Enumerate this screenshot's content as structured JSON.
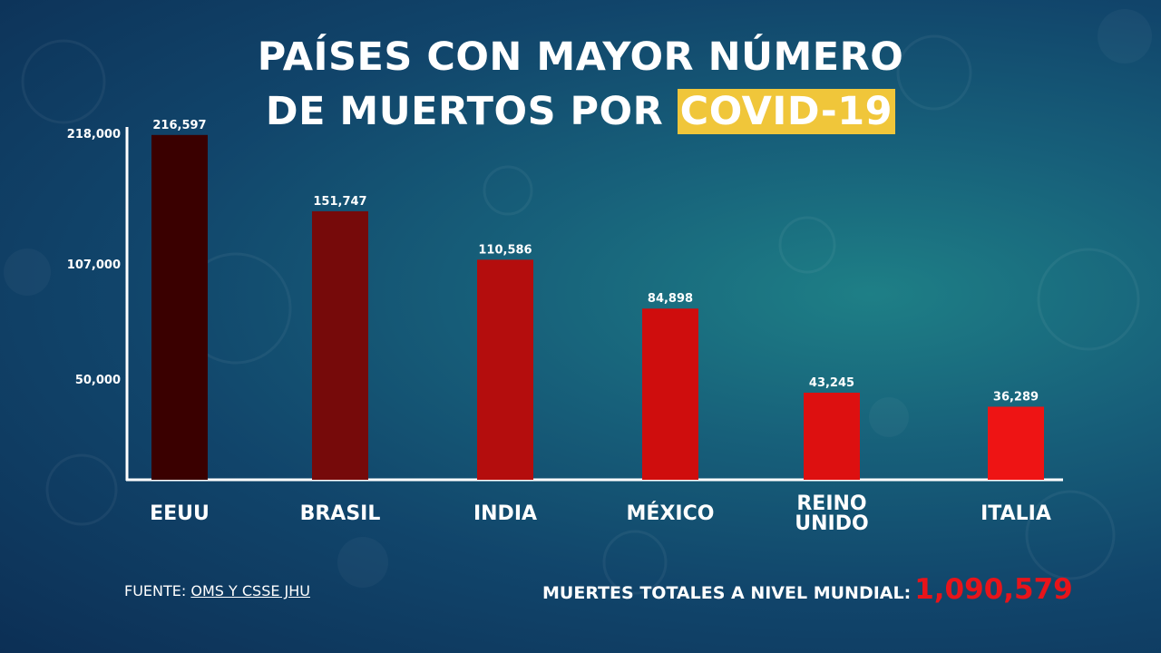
{
  "title": {
    "line1": "PAÍSES CON MAYOR NÚMERO",
    "line2_prefix": "DE MUERTOS POR ",
    "line2_highlight": "COVID-19"
  },
  "colors": {
    "highlight": "#f0c63a",
    "total_value": "#e8141a",
    "bars": [
      "#3a0000",
      "#760a0a",
      "#b40d0d",
      "#cf0d0d",
      "#dd1010",
      "#ee1414"
    ]
  },
  "chart_data": {
    "type": "bar",
    "categories": [
      "EEUU",
      "BRASIL",
      "INDIA",
      "MÉXICO",
      "REINO UNIDO",
      "ITALIA"
    ],
    "category_lines": [
      [
        "EEUU"
      ],
      [
        "BRASIL"
      ],
      [
        "INDIA"
      ],
      [
        "MÉXICO"
      ],
      [
        "REINO",
        "UNIDO"
      ],
      [
        "ITALIA"
      ]
    ],
    "values": [
      216597,
      151747,
      110586,
      84898,
      43245,
      36289
    ],
    "value_labels": [
      "216,597",
      "151,747",
      "110,586",
      "84,898",
      "43,245",
      "36,289"
    ],
    "yticks": [
      50000,
      107000,
      218000
    ],
    "ytick_labels": [
      "50,000",
      "107,000",
      "218,000"
    ],
    "ylim": [
      0,
      218000
    ],
    "xlabel": "",
    "ylabel": "",
    "grid": false,
    "legend": "none"
  },
  "footer": {
    "source_prefix": "FUENTE: ",
    "source_link": "OMS Y CSSE JHU",
    "total_label": "MUERTES TOTALES A NIVEL MUNDIAL:",
    "total_value": "1,090,579"
  }
}
